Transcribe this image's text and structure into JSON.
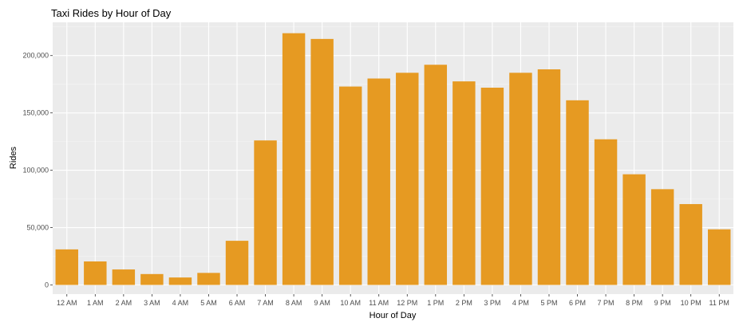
{
  "chart_data": {
    "type": "bar",
    "title": "Taxi Rides by Hour of Day",
    "xlabel": "Hour of Day",
    "ylabel": "Rides",
    "categories": [
      "12 AM",
      "1 AM",
      "2 AM",
      "3 AM",
      "4 AM",
      "5 AM",
      "6 AM",
      "7 AM",
      "8 AM",
      "9 AM",
      "10 AM",
      "11 AM",
      "12 PM",
      "1 PM",
      "2 PM",
      "3 PM",
      "4 PM",
      "5 PM",
      "6 PM",
      "7 PM",
      "8 PM",
      "9 PM",
      "10 PM",
      "11 PM"
    ],
    "values": [
      31000,
      20500,
      13500,
      9500,
      6500,
      10500,
      38500,
      126000,
      219500,
      214500,
      173000,
      180000,
      185000,
      192000,
      177500,
      172000,
      185000,
      188000,
      161000,
      127000,
      96500,
      83500,
      70500,
      48500
    ],
    "ylim": [
      -8000,
      229000
    ],
    "yticks": [
      0,
      50000,
      100000,
      150000,
      200000
    ],
    "ytick_labels": [
      "0",
      "50,000",
      "100,000",
      "150,000",
      "200,000"
    ],
    "bar_color": "#E69A22",
    "panel_color": "#EBEBEB",
    "grid_major_color": "#FFFFFF",
    "grid_minor_color": "#F5F5F5",
    "grid": true,
    "legend": "none"
  }
}
